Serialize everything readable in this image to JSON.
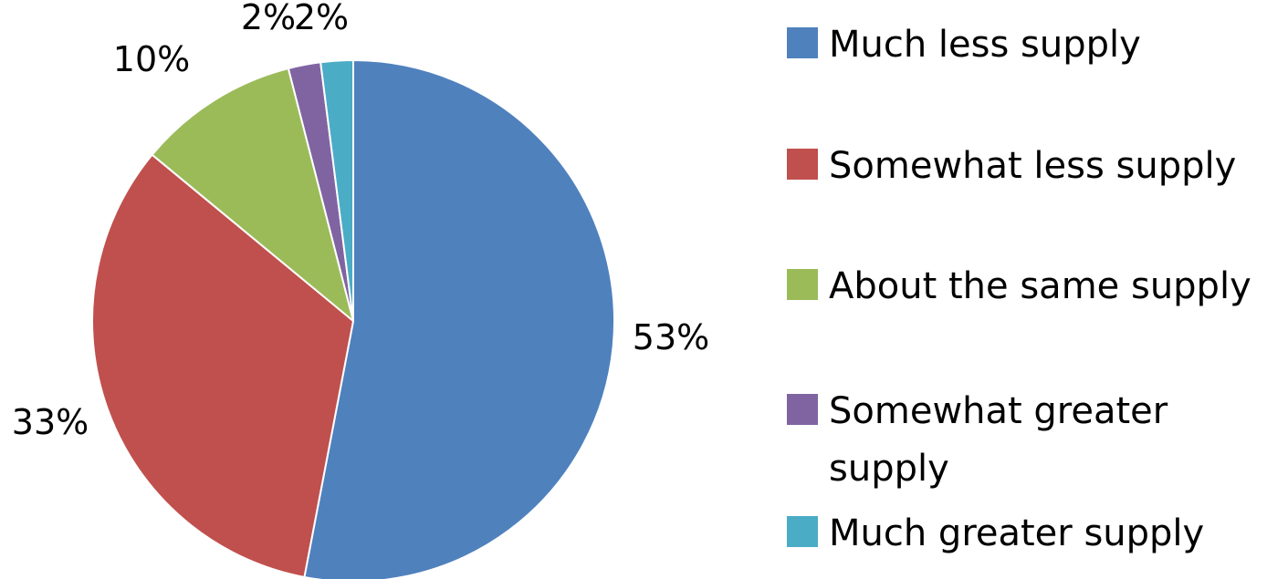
{
  "chart_data": {
    "type": "pie",
    "title": "",
    "slices": [
      {
        "label": "Much less supply",
        "value": 53,
        "value_label": "53%",
        "color": "#4F81BD"
      },
      {
        "label": "Somewhat less supply",
        "value": 33,
        "value_label": "33%",
        "color": "#C0504D"
      },
      {
        "label": "About the same supply",
        "value": 10,
        "value_label": "10%",
        "color": "#9BBB59"
      },
      {
        "label": "Somewhat greater supply",
        "value": 2,
        "value_label": "2%",
        "color": "#8064A2"
      },
      {
        "label": "Much greater supply",
        "value": 2,
        "value_label": "2%",
        "color": "#4BACC6"
      }
    ],
    "legend_position": "right",
    "direction": "clockwise from top"
  }
}
